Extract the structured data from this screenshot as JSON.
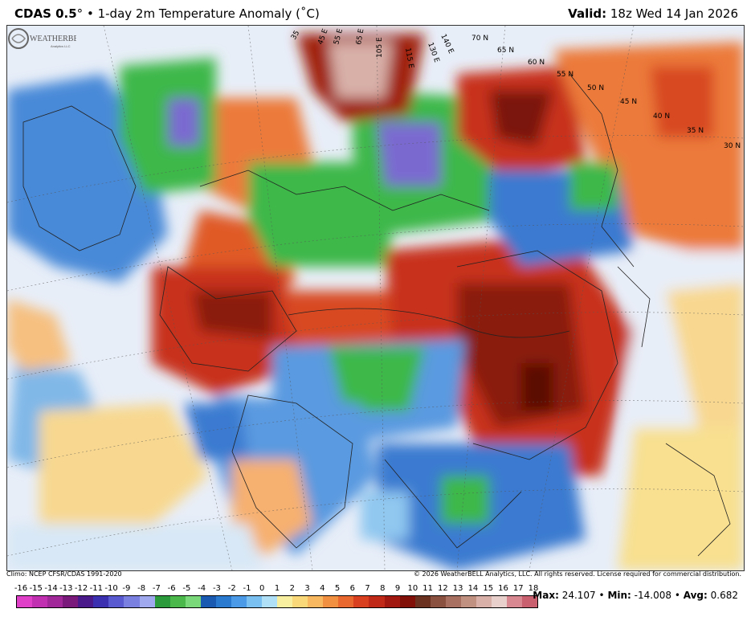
{
  "header": {
    "product": "CDAS 0.5",
    "degree": "°",
    "bullet": "•",
    "title": "1-day 2m Temperature Anomaly (˚C)",
    "valid_label": "Valid:",
    "valid_value": "18z Wed 14 Jan 2026"
  },
  "credits": {
    "climo": "Climo: NCEP CFSR/CDAS 1991-2020",
    "copyright": "© 2026 WeatherBELL Analytics, LLC. All rights reserved. License required for commercial distribution."
  },
  "logo": {
    "text": "WEATHERBELL",
    "sub": "Analytics LLC"
  },
  "map": {
    "lat_labels": [
      "70 N",
      "65 N",
      "60 N",
      "55 N",
      "50 N",
      "45 N",
      "40 N",
      "35 N",
      "30 N"
    ],
    "lon_labels": [
      "35",
      "45 E",
      "55 E",
      "65 E",
      "105 E",
      "115 E",
      "130 E",
      "140 E"
    ]
  },
  "legend": {
    "labels": [
      "-16",
      "-15",
      "-14",
      "-13",
      "-12",
      "-11",
      "-10",
      "-9",
      "-8",
      "-7",
      "-6",
      "-5",
      "-4",
      "-3",
      "-2",
      "-1",
      "0",
      "1",
      "2",
      "3",
      "4",
      "5",
      "6",
      "7",
      "8",
      "9",
      "10",
      "11",
      "12",
      "13",
      "14",
      "15",
      "16",
      "17",
      "18"
    ],
    "colors": [
      "#e040c8",
      "#c030b0",
      "#a02898",
      "#7a1a7a",
      "#4a1a8a",
      "#3a30b0",
      "#5a5ad0",
      "#7a80e0",
      "#a0a8ee",
      "#2a9a3a",
      "#4ab84a",
      "#7ad87a",
      "#1a5ab0",
      "#2a7ad0",
      "#4a9ae8",
      "#7ac0f0",
      "#b0e0f8",
      "#f8f0a0",
      "#f8d878",
      "#f8b860",
      "#f09040",
      "#e86830",
      "#d84020",
      "#c02818",
      "#a01810",
      "#801008",
      "#6a3020",
      "#8a5040",
      "#a87060",
      "#c09080",
      "#d8b0a8",
      "#e8d0cc",
      "#d88890",
      "#c86070"
    ]
  },
  "stats": {
    "max_label": "Max:",
    "max_value": "24.107",
    "min_label": "Min:",
    "min_value": "-14.008",
    "avg_label": "Avg:",
    "avg_value": "0.682",
    "sep": "•"
  },
  "colors": {
    "deep_red": "#7a1208",
    "red": "#c8321a",
    "orange": "#ec7a3a",
    "light_orange": "#f6b070",
    "yellow": "#f8e090",
    "pale_blue": "#d8e8f6",
    "light_blue": "#90c8f0",
    "blue": "#3a7ad0",
    "green": "#3cb84a",
    "purple": "#7a6ad0",
    "pink": "#d8b0a8"
  }
}
